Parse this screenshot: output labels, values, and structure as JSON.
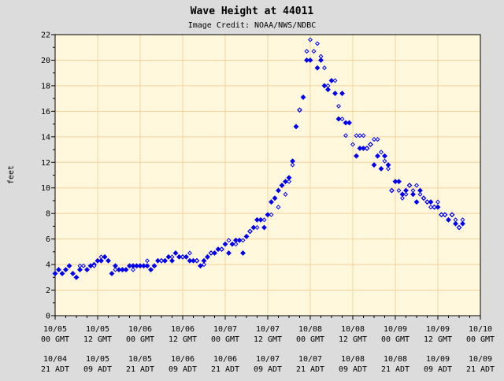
{
  "chart_data": {
    "type": "scatter",
    "title": "Wave Height at 44011",
    "subtitle": "Image Credit: NOAA/NWS/NDBC",
    "ylabel": "feet",
    "ylim": [
      0,
      22
    ],
    "yticks": [
      0,
      2,
      4,
      6,
      8,
      10,
      12,
      14,
      16,
      18,
      20,
      22
    ],
    "x_unit": "hours from 10/05 00 GMT",
    "xlim": [
      0,
      120
    ],
    "xticks": [
      {
        "hours": 0,
        "gmt_date": "10/05",
        "gmt_time": "00 GMT",
        "adt_date": "10/04",
        "adt_time": "21 ADT"
      },
      {
        "hours": 12,
        "gmt_date": "10/05",
        "gmt_time": "12 GMT",
        "adt_date": "10/05",
        "adt_time": "09 ADT"
      },
      {
        "hours": 24,
        "gmt_date": "10/06",
        "gmt_time": "00 GMT",
        "adt_date": "10/05",
        "adt_time": "21 ADT"
      },
      {
        "hours": 36,
        "gmt_date": "10/06",
        "gmt_time": "12 GMT",
        "adt_date": "10/06",
        "adt_time": "09 ADT"
      },
      {
        "hours": 48,
        "gmt_date": "10/07",
        "gmt_time": "00 GMT",
        "adt_date": "10/06",
        "adt_time": "21 ADT"
      },
      {
        "hours": 60,
        "gmt_date": "10/07",
        "gmt_time": "12 GMT",
        "adt_date": "10/07",
        "adt_time": "09 ADT"
      },
      {
        "hours": 72,
        "gmt_date": "10/08",
        "gmt_time": "00 GMT",
        "adt_date": "10/07",
        "adt_time": "21 ADT"
      },
      {
        "hours": 84,
        "gmt_date": "10/08",
        "gmt_time": "12 GMT",
        "adt_date": "10/08",
        "adt_time": "09 ADT"
      },
      {
        "hours": 96,
        "gmt_date": "10/09",
        "gmt_time": "00 GMT",
        "adt_date": "10/08",
        "adt_time": "21 ADT"
      },
      {
        "hours": 108,
        "gmt_date": "10/09",
        "gmt_time": "12 GMT",
        "adt_date": "10/09",
        "adt_time": "09 ADT"
      },
      {
        "hours": 120,
        "gmt_date": "10/10",
        "gmt_time": "00 GMT",
        "adt_date": "10/09",
        "adt_time": "21 ADT"
      }
    ],
    "grid": true,
    "legend": "none",
    "colors": {
      "page_background": "#dcdcdc",
      "plot_background": "#fff8dc",
      "grid": "#f5d29d",
      "marker": "#0000ee",
      "text": "#000000"
    },
    "series": [
      {
        "marker": "filled-diamond",
        "points": [
          [
            0,
            3.3
          ],
          [
            1,
            3.6
          ],
          [
            2,
            3.3
          ],
          [
            3,
            3.6
          ],
          [
            4,
            3.9
          ],
          [
            5,
            3.3
          ],
          [
            6,
            3.0
          ],
          [
            7,
            3.6
          ],
          [
            9,
            3.6
          ],
          [
            10,
            3.9
          ],
          [
            11,
            4.0
          ],
          [
            12,
            4.3
          ],
          [
            13,
            4.3
          ],
          [
            14,
            4.6
          ],
          [
            15,
            4.3
          ],
          [
            16,
            3.3
          ],
          [
            17,
            3.9
          ],
          [
            18,
            3.6
          ],
          [
            19,
            3.6
          ],
          [
            20,
            3.6
          ],
          [
            21,
            3.9
          ],
          [
            22,
            3.9
          ],
          [
            23,
            3.9
          ],
          [
            24,
            3.9
          ],
          [
            25,
            3.9
          ],
          [
            26,
            3.9
          ],
          [
            27,
            3.6
          ],
          [
            28,
            3.9
          ],
          [
            29,
            4.3
          ],
          [
            30,
            4.3
          ],
          [
            31,
            4.3
          ],
          [
            32,
            4.6
          ],
          [
            33,
            4.3
          ],
          [
            34,
            4.9
          ],
          [
            35,
            4.6
          ],
          [
            36,
            4.6
          ],
          [
            37,
            4.6
          ],
          [
            38,
            4.3
          ],
          [
            39,
            4.3
          ],
          [
            40,
            4.3
          ],
          [
            41,
            3.9
          ],
          [
            42,
            4.3
          ],
          [
            43,
            4.6
          ],
          [
            44,
            4.9
          ],
          [
            45,
            4.9
          ],
          [
            46,
            5.2
          ],
          [
            47,
            5.2
          ],
          [
            48,
            5.6
          ],
          [
            49,
            4.9
          ],
          [
            50,
            5.6
          ],
          [
            51,
            5.9
          ],
          [
            52,
            5.9
          ],
          [
            53,
            4.9
          ],
          [
            54,
            6.2
          ],
          [
            55,
            6.6
          ],
          [
            56,
            6.9
          ],
          [
            57,
            7.5
          ],
          [
            58,
            7.5
          ],
          [
            59,
            6.9
          ],
          [
            60,
            7.9
          ],
          [
            61,
            8.9
          ],
          [
            62,
            9.2
          ],
          [
            63,
            9.8
          ],
          [
            64,
            10.2
          ],
          [
            65,
            10.5
          ],
          [
            66,
            10.8
          ],
          [
            67,
            12.1
          ],
          [
            68,
            14.8
          ],
          [
            69,
            16.1
          ],
          [
            70,
            17.1
          ],
          [
            71,
            20.0
          ],
          [
            72,
            20.0
          ],
          [
            74,
            19.4
          ],
          [
            75,
            20.0
          ],
          [
            76,
            18.0
          ],
          [
            77,
            17.7
          ],
          [
            78,
            18.4
          ],
          [
            79,
            17.4
          ],
          [
            80,
            15.4
          ],
          [
            81,
            17.4
          ],
          [
            82,
            15.1
          ],
          [
            83,
            15.1
          ],
          [
            85,
            12.5
          ],
          [
            86,
            13.1
          ],
          [
            87,
            13.1
          ],
          [
            88,
            13.1
          ],
          [
            89,
            13.4
          ],
          [
            90,
            11.8
          ],
          [
            91,
            12.5
          ],
          [
            92,
            11.5
          ],
          [
            93,
            12.5
          ],
          [
            94,
            11.8
          ],
          [
            95,
            9.8
          ],
          [
            96,
            10.5
          ],
          [
            97,
            10.5
          ],
          [
            98,
            9.5
          ],
          [
            99,
            9.8
          ],
          [
            100,
            10.2
          ],
          [
            101,
            9.5
          ],
          [
            102,
            8.9
          ],
          [
            103,
            9.8
          ],
          [
            104,
            9.2
          ],
          [
            105,
            8.9
          ],
          [
            106,
            8.9
          ],
          [
            107,
            8.5
          ],
          [
            108,
            8.5
          ],
          [
            109,
            7.9
          ],
          [
            110,
            7.9
          ],
          [
            111,
            7.5
          ],
          [
            112,
            7.9
          ],
          [
            113,
            7.2
          ],
          [
            114,
            6.9
          ],
          [
            115,
            7.2
          ]
        ]
      },
      {
        "marker": "open-diamond",
        "points": [
          [
            7,
            3.9
          ],
          [
            8,
            3.9
          ],
          [
            11,
            3.9
          ],
          [
            13,
            4.6
          ],
          [
            17,
            3.6
          ],
          [
            22,
            3.6
          ],
          [
            26,
            4.3
          ],
          [
            30,
            4.3
          ],
          [
            33,
            4.6
          ],
          [
            36,
            4.6
          ],
          [
            38,
            4.9
          ],
          [
            40,
            4.3
          ],
          [
            42,
            4.0
          ],
          [
            44,
            4.9
          ],
          [
            47,
            5.2
          ],
          [
            49,
            5.9
          ],
          [
            51,
            5.6
          ],
          [
            53,
            5.9
          ],
          [
            55,
            6.6
          ],
          [
            57,
            6.9
          ],
          [
            59,
            7.5
          ],
          [
            61,
            7.9
          ],
          [
            63,
            8.5
          ],
          [
            65,
            9.5
          ],
          [
            66,
            10.5
          ],
          [
            67,
            11.8
          ],
          [
            69,
            16.1
          ],
          [
            71,
            20.7
          ],
          [
            72,
            21.6
          ],
          [
            73,
            20.7
          ],
          [
            74,
            21.3
          ],
          [
            75,
            20.3
          ],
          [
            76,
            19.4
          ],
          [
            77,
            18.0
          ],
          [
            79,
            18.4
          ],
          [
            80,
            16.4
          ],
          [
            81,
            15.4
          ],
          [
            82,
            14.1
          ],
          [
            84,
            13.4
          ],
          [
            85,
            14.1
          ],
          [
            86,
            14.1
          ],
          [
            87,
            14.1
          ],
          [
            88,
            13.1
          ],
          [
            89,
            13.4
          ],
          [
            90,
            13.8
          ],
          [
            91,
            13.8
          ],
          [
            92,
            12.8
          ],
          [
            93,
            12.1
          ],
          [
            94,
            11.5
          ],
          [
            95,
            9.8
          ],
          [
            97,
            9.8
          ],
          [
            98,
            9.2
          ],
          [
            99,
            9.5
          ],
          [
            100,
            10.2
          ],
          [
            101,
            9.8
          ],
          [
            102,
            10.2
          ],
          [
            103,
            9.5
          ],
          [
            104,
            9.2
          ],
          [
            105,
            8.9
          ],
          [
            106,
            8.5
          ],
          [
            107,
            8.5
          ],
          [
            108,
            8.9
          ],
          [
            109,
            7.9
          ],
          [
            110,
            7.9
          ],
          [
            112,
            7.9
          ],
          [
            113,
            7.5
          ],
          [
            114,
            6.9
          ],
          [
            115,
            7.5
          ]
        ]
      }
    ]
  }
}
